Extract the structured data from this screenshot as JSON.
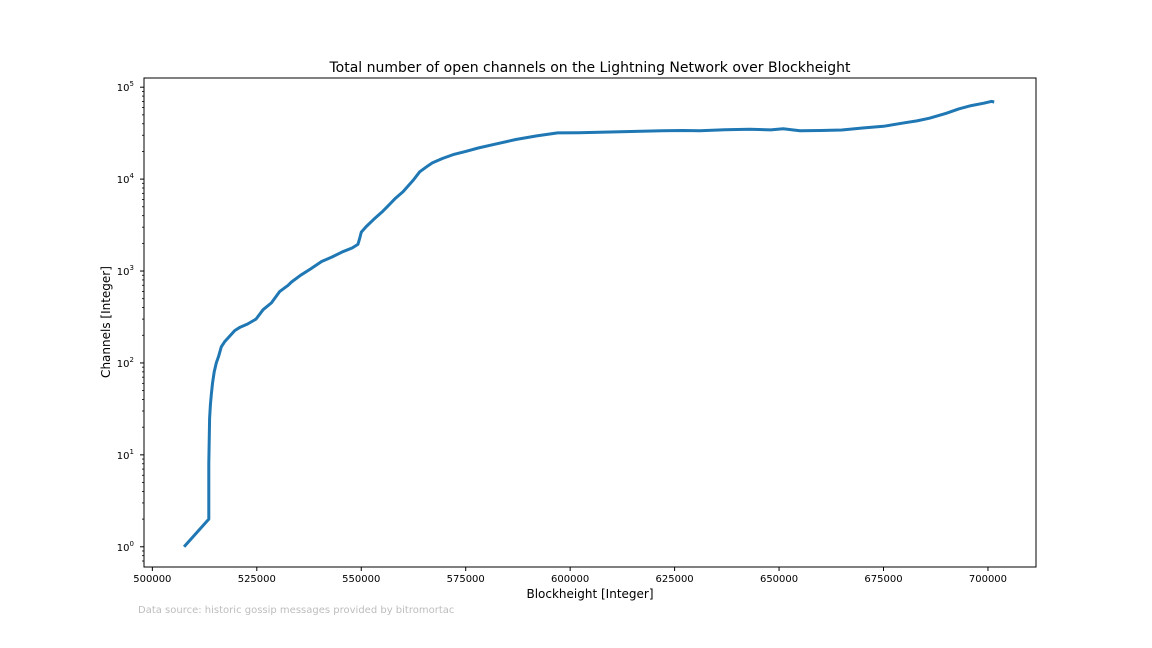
{
  "chart_data": {
    "type": "line",
    "title": "Total number of open channels on the Lightning Network over Blockheight",
    "xlabel": "Blockheight [Integer]",
    "ylabel": "Channels [Integer]",
    "xlim": [
      498000,
      711500
    ],
    "ylim_log10": [
      -0.22,
      5.1
    ],
    "yscale": "log",
    "grid": false,
    "x_ticks": [
      500000,
      525000,
      550000,
      575000,
      600000,
      625000,
      650000,
      675000,
      700000
    ],
    "x_tick_labels": [
      "500000",
      "525000",
      "550000",
      "575000",
      "600000",
      "625000",
      "650000",
      "675000",
      "700000"
    ],
    "y_ticks_exp": [
      0,
      1,
      2,
      3,
      4,
      5
    ],
    "y_tick_base": "10",
    "series": [
      {
        "color": "#1f77b4",
        "x": [
          507600,
          513500,
          513500,
          513700,
          513900,
          514100,
          514400,
          514800,
          515300,
          515900,
          516500,
          517300,
          518500,
          519700,
          521000,
          522800,
          524800,
          526500,
          528500,
          530500,
          532500,
          533300,
          535500,
          537800,
          540500,
          543000,
          545500,
          547800,
          549200,
          549600,
          550000,
          551200,
          553000,
          555000,
          556500,
          558200,
          560000,
          562500,
          564000,
          566000,
          567000,
          569500,
          572000,
          575000,
          578000,
          582000,
          587000,
          592000,
          597000,
          602000,
          607000,
          612000,
          617000,
          622000,
          627000,
          631000,
          637000,
          643000,
          648000,
          651000,
          655000,
          660000,
          665000,
          670000,
          675000,
          680000,
          683000,
          686000,
          690000,
          693000,
          696000,
          699000,
          700800,
          701500
        ],
        "y": [
          1,
          2,
          8,
          25,
          35,
          45,
          60,
          80,
          100,
          120,
          150,
          170,
          195,
          225,
          245,
          265,
          300,
          380,
          450,
          600,
          700,
          760,
          900,
          1050,
          1270,
          1420,
          1620,
          1780,
          1950,
          2250,
          2650,
          3050,
          3650,
          4400,
          5150,
          6200,
          7300,
          9800,
          12000,
          14000,
          15000,
          16800,
          18500,
          20000,
          21800,
          24000,
          27000,
          29500,
          31800,
          32000,
          32300,
          32800,
          33200,
          33500,
          33800,
          33500,
          34500,
          34800,
          34300,
          35300,
          33500,
          33800,
          34200,
          36000,
          37500,
          41000,
          43000,
          46000,
          52000,
          58000,
          63000,
          67000,
          70000,
          69000
        ]
      }
    ]
  },
  "footnote": "Data source: historic gossip messages provided by bitromortac"
}
